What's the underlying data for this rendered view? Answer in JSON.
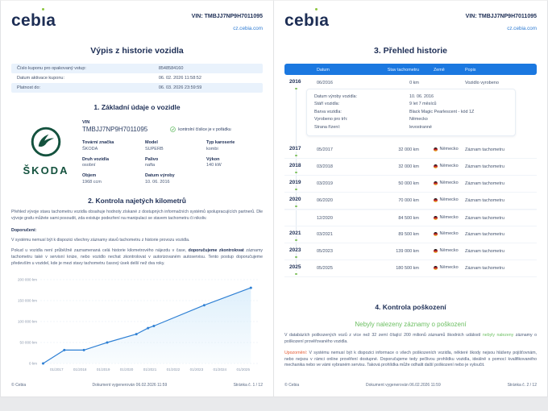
{
  "brand": {
    "logo": "cebia",
    "vin_header": "VIN: TMBJJ7NP9H7011095",
    "site": "cz.cebia.com",
    "accent_green": "#8dc63f",
    "navy": "#1d2e55",
    "header_blue": "#1b78e0"
  },
  "footer": {
    "copyright": "© Cebia",
    "generated": "Dokument vygenerován 06.02.2026 11:59",
    "page1": "Stránka č. 1 / 12",
    "page2": "Stránka č. 2 / 12"
  },
  "page1": {
    "title": "Výpis z historie vozidla",
    "coupon_rows": [
      {
        "label": "Číslo kuponu pro opakovaný vstup:",
        "value": "8548584160"
      },
      {
        "label": "Datum aktivace kuponu:",
        "value": "06. 02. 2026 11:58:52"
      },
      {
        "label": "Platnost do:",
        "value": "06. 03. 2026 23:59:59"
      }
    ],
    "section1": {
      "title": "1. Základní údaje o vozidle",
      "make_logo_text": "ŠKODA",
      "vin_label": "VIN",
      "vin_value": "TMBJJ7NP9H7011095",
      "vin_check": "kontrolní číslice je v pořádku",
      "fields": [
        {
          "label": "Tovární značka",
          "value": "ŠKODA"
        },
        {
          "label": "Model",
          "value": "SUPERB"
        },
        {
          "label": "Typ karoserie",
          "value": "kombi"
        },
        {
          "label": "Druh vozidla",
          "value": "osobní"
        },
        {
          "label": "Palivo",
          "value": "nafta"
        },
        {
          "label": "Výkon",
          "value": "140 kW"
        },
        {
          "label": "Objem",
          "value": "1968 ccm"
        },
        {
          "label": "Datum výroby",
          "value": "10. 06. 2016"
        }
      ]
    },
    "section2": {
      "title": "2. Kontrola najetých kilometrů",
      "intro": "Přehled vývoje stavu tachometru vozidla obsahuje hodnoty získané z dostupných informačních systémů spolupracujících partnerů. Dle vývoje grafu můžete sami posoudit, zda existuje podezření na manipulaci se stavem tachometru či nikoliv.",
      "recommendation_label": "Doporučení:",
      "p1": "V systému nemusí být k dispozici všechny záznamy stavů tachometru z historie provozu vozidla.",
      "p2_pre": "Pokud u vozidla není průběžně zaznamenaná celá historie kilometrového nájezdu v čase, ",
      "p2_bold": "doporučujeme zkontrolovat",
      "p2_post": " záznamy tachometru také v servisní knize, nebo vozidlo nechat zkontrolovat v autorizovaném autoservisu. Tento postup doporučujeme především u vozidel, kde je mezi stavy tachometru časový úsek delší než dva roky."
    }
  },
  "page2": {
    "title": "3. Přehled historie",
    "table": {
      "headers": [
        "Datum",
        "Stav tachometru",
        "Země",
        "Popis"
      ],
      "rows": [
        {
          "year": "2016",
          "entries": [
            {
              "date": "06/2016",
              "km": "0 km",
              "country": "",
              "desc": "Vozidlo vyrobeno"
            }
          ],
          "detail": [
            {
              "label": "Datum výroby vozidla:",
              "value": "10. 06. 2016"
            },
            {
              "label": "Stáří vozidla:",
              "value": "9 let 7 měsíců"
            },
            {
              "label": "Barva vozidla:",
              "value": "Black Magic Pearlescent - kód 1Z"
            },
            {
              "label": "Vyrobeno pro trh:",
              "value": "Německo"
            },
            {
              "label": "Strana řízení:",
              "value": "levostranné"
            }
          ]
        },
        {
          "year": "2017",
          "entries": [
            {
              "date": "05/2017",
              "km": "32 000 km",
              "country": "Německo",
              "desc": "Záznam tachometru"
            }
          ]
        },
        {
          "year": "2018",
          "entries": [
            {
              "date": "03/2018",
              "km": "32 000 km",
              "country": "Německo",
              "desc": "Záznam tachometru"
            }
          ]
        },
        {
          "year": "2019",
          "entries": [
            {
              "date": "03/2019",
              "km": "50 000 km",
              "country": "Německo",
              "desc": "Záznam tachometru"
            }
          ]
        },
        {
          "year": "2020",
          "entries": [
            {
              "date": "06/2020",
              "km": "70 000 km",
              "country": "Německo",
              "desc": "Záznam tachometru"
            },
            {
              "date": "12/2020",
              "km": "84 500 km",
              "country": "Německo",
              "desc": "Záznam tachometru"
            }
          ]
        },
        {
          "year": "2021",
          "entries": [
            {
              "date": "03/2021",
              "km": "89 500 km",
              "country": "Německo",
              "desc": "Záznam tachometru"
            }
          ]
        },
        {
          "year": "2023",
          "entries": [
            {
              "date": "05/2023",
              "km": "139 000 km",
              "country": "Německo",
              "desc": "Záznam tachometru"
            }
          ]
        },
        {
          "year": "2025",
          "entries": [
            {
              "date": "05/2025",
              "km": "180 500 km",
              "country": "Německo",
              "desc": "Záznam tachometru"
            }
          ]
        }
      ]
    },
    "section4": {
      "title": "4. Kontrola poškození",
      "status_heading": "Nebyly nalezeny záznamy o poškození",
      "p1_pre": "V databázích poškozených vozů z více než 32 zemí čítající 200 milionů záznamů škodních událostí ",
      "p1_highlight": "nebyly nalezeny",
      "p1_post": " záznamy o poškození prověřovaného vozidla.",
      "warning_label": "Upozornění:",
      "warning_text": " V systému nemusí být k dispozici informace o všech poškozeních vozidla, některé škody nejsou hlášeny pojišťovnám, nebo nejsou v rámci online prověření dostupné. Doporučujeme tedy pečlivou prohlídku vozidla, ideálně s pomocí kvalifikovaného mechanika nebo ve vámi vybraném servisu. Taková prohlídka může odhalit další poškození nebo je vyloučit."
    }
  },
  "chart_data": {
    "type": "area",
    "title": "",
    "xlabel": "",
    "ylabel": "km",
    "points": [
      {
        "label": "06/2016",
        "x": 2016.42,
        "km": 0
      },
      {
        "label": "05/2017",
        "x": 2017.33,
        "km": 32000
      },
      {
        "label": "03/2018",
        "x": 2018.17,
        "km": 32000
      },
      {
        "label": "03/2019",
        "x": 2019.17,
        "km": 50000
      },
      {
        "label": "06/2020",
        "x": 2020.42,
        "km": 70000
      },
      {
        "label": "12/2020",
        "x": 2020.92,
        "km": 84500
      },
      {
        "label": "03/2021",
        "x": 2021.17,
        "km": 89500
      },
      {
        "label": "05/2023",
        "x": 2023.33,
        "km": 139000
      },
      {
        "label": "05/2025",
        "x": 2025.33,
        "km": 180500
      }
    ],
    "x_ticks": [
      "01/2017",
      "01/2018",
      "01/2019",
      "01/2020",
      "01/2021",
      "01/2022",
      "01/2023",
      "01/2024",
      "01/2025"
    ],
    "x_tick_pos": [
      2017,
      2018,
      2019,
      2020,
      2021,
      2022,
      2023,
      2024,
      2025
    ],
    "y_ticks": [
      "0 km",
      "50 000 km",
      "100 000 km",
      "150 000 km",
      "200 000 km"
    ],
    "y_tick_values": [
      0,
      50000,
      100000,
      150000,
      200000
    ],
    "xlim": [
      2016.3,
      2025.7
    ],
    "ylim": [
      0,
      200000
    ],
    "grid": true,
    "legend": false,
    "line_color": "#2f80d4",
    "fill_color": "#d9edfb"
  }
}
